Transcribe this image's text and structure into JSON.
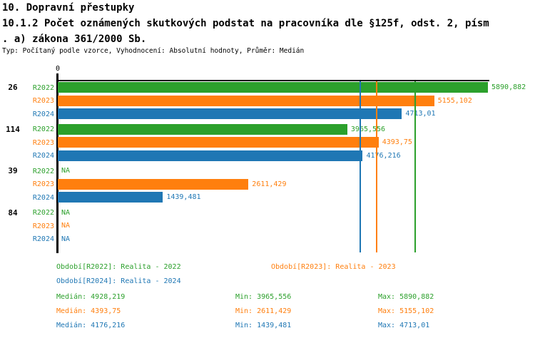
{
  "header": {
    "title": "10. Dopravní přestupky",
    "subtitle_line1": "10.1.2 Počet oznámených skutkových podstat na pracovníka dle §125f, odst. 2, písm",
    "subtitle_line2": ". a) zákona 361/2000 Sb.",
    "meta": "Typ: Počítaný podle vzorce, Vyhodnocení: Absolutní hodnoty, Průměr: Medián"
  },
  "colors": {
    "green": "#2ca02c",
    "orange": "#ff7f0e",
    "blue": "#1f77b4",
    "axis": "#000000"
  },
  "chart_data": {
    "type": "bar",
    "orientation": "horizontal",
    "x_origin_label": "0",
    "axis_max": 5890.882,
    "legend_position": "bottom",
    "series_names": [
      "R2022",
      "R2023",
      "R2024"
    ],
    "groups": [
      {
        "label": "26",
        "bars": [
          {
            "series": "R2022",
            "color": "green",
            "value": 5890.882,
            "display": "5890,882"
          },
          {
            "series": "R2023",
            "color": "orange",
            "value": 5155.102,
            "display": "5155,102"
          },
          {
            "series": "R2024",
            "color": "blue",
            "value": 4713.01,
            "display": "4713,01"
          }
        ]
      },
      {
        "label": "114",
        "bars": [
          {
            "series": "R2022",
            "color": "green",
            "value": 3965.556,
            "display": "3965,556"
          },
          {
            "series": "R2023",
            "color": "orange",
            "value": 4393.75,
            "display": "4393,75"
          },
          {
            "series": "R2024",
            "color": "blue",
            "value": 4176.216,
            "display": "4176,216"
          }
        ]
      },
      {
        "label": "39",
        "bars": [
          {
            "series": "R2022",
            "color": "green",
            "value": null,
            "display": "NA"
          },
          {
            "series": "R2023",
            "color": "orange",
            "value": 2611.429,
            "display": "2611,429"
          },
          {
            "series": "R2024",
            "color": "blue",
            "value": 1439.481,
            "display": "1439,481"
          }
        ]
      },
      {
        "label": "84",
        "bars": [
          {
            "series": "R2022",
            "color": "green",
            "value": null,
            "display": "NA"
          },
          {
            "series": "R2023",
            "color": "orange",
            "value": null,
            "display": "NA"
          },
          {
            "series": "R2024",
            "color": "blue",
            "value": null,
            "display": "NA"
          }
        ]
      }
    ],
    "median_lines": [
      {
        "series": "R2022",
        "color": "green",
        "value": 4928.219
      },
      {
        "series": "R2023",
        "color": "orange",
        "value": 4393.75
      },
      {
        "series": "R2024",
        "color": "blue",
        "value": 4176.216
      }
    ],
    "legend": [
      {
        "series": "R2022",
        "color": "green",
        "label": "Období[R2022]: Realita - 2022"
      },
      {
        "series": "R2023",
        "color": "orange",
        "label": "Období[R2023]: Realita - 2023"
      },
      {
        "series": "R2024",
        "color": "blue",
        "label": "Období[R2024]: Realita - 2024"
      }
    ],
    "stat_labels": {
      "median": "Medián",
      "min": "Min",
      "max": "Max"
    },
    "stats": [
      {
        "series": "R2022",
        "color": "green",
        "median": "4928,219",
        "min": "3965,556",
        "max": "5890,882"
      },
      {
        "series": "R2023",
        "color": "orange",
        "median": "4393,75",
        "min": "2611,429",
        "max": "5155,102"
      },
      {
        "series": "R2024",
        "color": "blue",
        "median": "4176,216",
        "min": "1439,481",
        "max": "4713,01"
      }
    ]
  }
}
